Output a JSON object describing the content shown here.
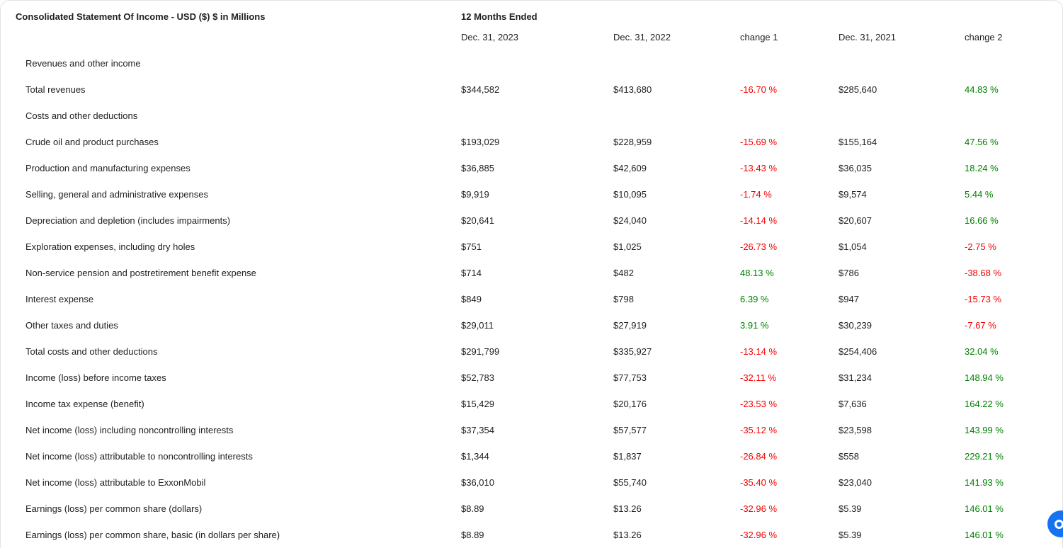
{
  "header": {
    "title": "Consolidated Statement Of Income - USD ($) $ in Millions",
    "period_label": "12 Months Ended",
    "columns": [
      "Dec. 31, 2023",
      "Dec. 31, 2022",
      "change 1",
      "Dec. 31, 2021",
      "change 2"
    ]
  },
  "colors": {
    "positive_change": "#008000",
    "negative_change": "#f70000",
    "text": "#212121",
    "card_border": "#e3e3e3",
    "floating_button": "#1573f2"
  },
  "floating_button": {
    "name": "chat-button"
  },
  "rows": [
    {
      "label": "Revenues and other income",
      "cells": [
        {
          "text": "",
          "tone": ""
        },
        {
          "text": "",
          "tone": ""
        },
        {
          "text": "",
          "tone": ""
        },
        {
          "text": "",
          "tone": ""
        },
        {
          "text": "",
          "tone": ""
        }
      ]
    },
    {
      "label": "Total revenues",
      "cells": [
        {
          "text": "$344,582",
          "tone": ""
        },
        {
          "text": "$413,680",
          "tone": ""
        },
        {
          "text": "-16.70 %",
          "tone": "neg"
        },
        {
          "text": "$285,640",
          "tone": ""
        },
        {
          "text": "44.83 %",
          "tone": "pos"
        }
      ]
    },
    {
      "label": "Costs and other deductions",
      "cells": [
        {
          "text": "",
          "tone": ""
        },
        {
          "text": "",
          "tone": ""
        },
        {
          "text": "",
          "tone": ""
        },
        {
          "text": "",
          "tone": ""
        },
        {
          "text": "",
          "tone": ""
        }
      ]
    },
    {
      "label": "Crude oil and product purchases",
      "cells": [
        {
          "text": "$193,029",
          "tone": ""
        },
        {
          "text": "$228,959",
          "tone": ""
        },
        {
          "text": "-15.69 %",
          "tone": "neg"
        },
        {
          "text": "$155,164",
          "tone": ""
        },
        {
          "text": "47.56 %",
          "tone": "pos"
        }
      ]
    },
    {
      "label": "Production and manufacturing expenses",
      "cells": [
        {
          "text": "$36,885",
          "tone": ""
        },
        {
          "text": "$42,609",
          "tone": ""
        },
        {
          "text": "-13.43 %",
          "tone": "neg"
        },
        {
          "text": "$36,035",
          "tone": ""
        },
        {
          "text": "18.24 %",
          "tone": "pos"
        }
      ]
    },
    {
      "label": "Selling, general and administrative expenses",
      "cells": [
        {
          "text": "$9,919",
          "tone": ""
        },
        {
          "text": "$10,095",
          "tone": ""
        },
        {
          "text": "-1.74 %",
          "tone": "neg"
        },
        {
          "text": "$9,574",
          "tone": ""
        },
        {
          "text": "5.44 %",
          "tone": "pos"
        }
      ]
    },
    {
      "label": "Depreciation and depletion (includes impairments)",
      "cells": [
        {
          "text": "$20,641",
          "tone": ""
        },
        {
          "text": "$24,040",
          "tone": ""
        },
        {
          "text": "-14.14 %",
          "tone": "neg"
        },
        {
          "text": "$20,607",
          "tone": ""
        },
        {
          "text": "16.66 %",
          "tone": "pos"
        }
      ]
    },
    {
      "label": "Exploration expenses, including dry holes",
      "cells": [
        {
          "text": "$751",
          "tone": ""
        },
        {
          "text": "$1,025",
          "tone": ""
        },
        {
          "text": "-26.73 %",
          "tone": "neg"
        },
        {
          "text": "$1,054",
          "tone": ""
        },
        {
          "text": "-2.75 %",
          "tone": "neg"
        }
      ]
    },
    {
      "label": "Non-service pension and postretirement benefit expense",
      "cells": [
        {
          "text": "$714",
          "tone": ""
        },
        {
          "text": "$482",
          "tone": ""
        },
        {
          "text": "48.13 %",
          "tone": "pos"
        },
        {
          "text": "$786",
          "tone": ""
        },
        {
          "text": "-38.68 %",
          "tone": "neg"
        }
      ]
    },
    {
      "label": "Interest expense",
      "cells": [
        {
          "text": "$849",
          "tone": ""
        },
        {
          "text": "$798",
          "tone": ""
        },
        {
          "text": "6.39 %",
          "tone": "pos"
        },
        {
          "text": "$947",
          "tone": ""
        },
        {
          "text": "-15.73 %",
          "tone": "neg"
        }
      ]
    },
    {
      "label": "Other taxes and duties",
      "cells": [
        {
          "text": "$29,011",
          "tone": ""
        },
        {
          "text": "$27,919",
          "tone": ""
        },
        {
          "text": "3.91 %",
          "tone": "pos"
        },
        {
          "text": "$30,239",
          "tone": ""
        },
        {
          "text": "-7.67 %",
          "tone": "neg"
        }
      ]
    },
    {
      "label": "Total costs and other deductions",
      "cells": [
        {
          "text": "$291,799",
          "tone": ""
        },
        {
          "text": "$335,927",
          "tone": ""
        },
        {
          "text": "-13.14 %",
          "tone": "neg"
        },
        {
          "text": "$254,406",
          "tone": ""
        },
        {
          "text": "32.04 %",
          "tone": "pos"
        }
      ]
    },
    {
      "label": "Income (loss) before income taxes",
      "cells": [
        {
          "text": "$52,783",
          "tone": ""
        },
        {
          "text": "$77,753",
          "tone": ""
        },
        {
          "text": "-32.11 %",
          "tone": "neg"
        },
        {
          "text": "$31,234",
          "tone": ""
        },
        {
          "text": "148.94 %",
          "tone": "pos"
        }
      ]
    },
    {
      "label": "Income tax expense (benefit)",
      "cells": [
        {
          "text": "$15,429",
          "tone": ""
        },
        {
          "text": "$20,176",
          "tone": ""
        },
        {
          "text": "-23.53 %",
          "tone": "neg"
        },
        {
          "text": "$7,636",
          "tone": ""
        },
        {
          "text": "164.22 %",
          "tone": "pos"
        }
      ]
    },
    {
      "label": "Net income (loss) including noncontrolling interests",
      "cells": [
        {
          "text": "$37,354",
          "tone": ""
        },
        {
          "text": "$57,577",
          "tone": ""
        },
        {
          "text": "-35.12 %",
          "tone": "neg"
        },
        {
          "text": "$23,598",
          "tone": ""
        },
        {
          "text": "143.99 %",
          "tone": "pos"
        }
      ]
    },
    {
      "label": "Net income (loss) attributable to noncontrolling interests",
      "cells": [
        {
          "text": "$1,344",
          "tone": ""
        },
        {
          "text": "$1,837",
          "tone": ""
        },
        {
          "text": "-26.84 %",
          "tone": "neg"
        },
        {
          "text": "$558",
          "tone": ""
        },
        {
          "text": "229.21 %",
          "tone": "pos"
        }
      ]
    },
    {
      "label": "Net income (loss) attributable to ExxonMobil",
      "cells": [
        {
          "text": "$36,010",
          "tone": ""
        },
        {
          "text": "$55,740",
          "tone": ""
        },
        {
          "text": "-35.40 %",
          "tone": "neg"
        },
        {
          "text": "$23,040",
          "tone": ""
        },
        {
          "text": "141.93 %",
          "tone": "pos"
        }
      ]
    },
    {
      "label": "Earnings (loss) per common share (dollars)",
      "cells": [
        {
          "text": "$8.89",
          "tone": ""
        },
        {
          "text": "$13.26",
          "tone": ""
        },
        {
          "text": "-32.96 %",
          "tone": "neg"
        },
        {
          "text": "$5.39",
          "tone": ""
        },
        {
          "text": "146.01 %",
          "tone": "pos"
        }
      ]
    },
    {
      "label": "Earnings (loss) per common share, basic (in dollars per share)",
      "cells": [
        {
          "text": "$8.89",
          "tone": ""
        },
        {
          "text": "$13.26",
          "tone": ""
        },
        {
          "text": "-32.96 %",
          "tone": "neg"
        },
        {
          "text": "$5.39",
          "tone": ""
        },
        {
          "text": "146.01 %",
          "tone": "pos"
        }
      ]
    }
  ]
}
